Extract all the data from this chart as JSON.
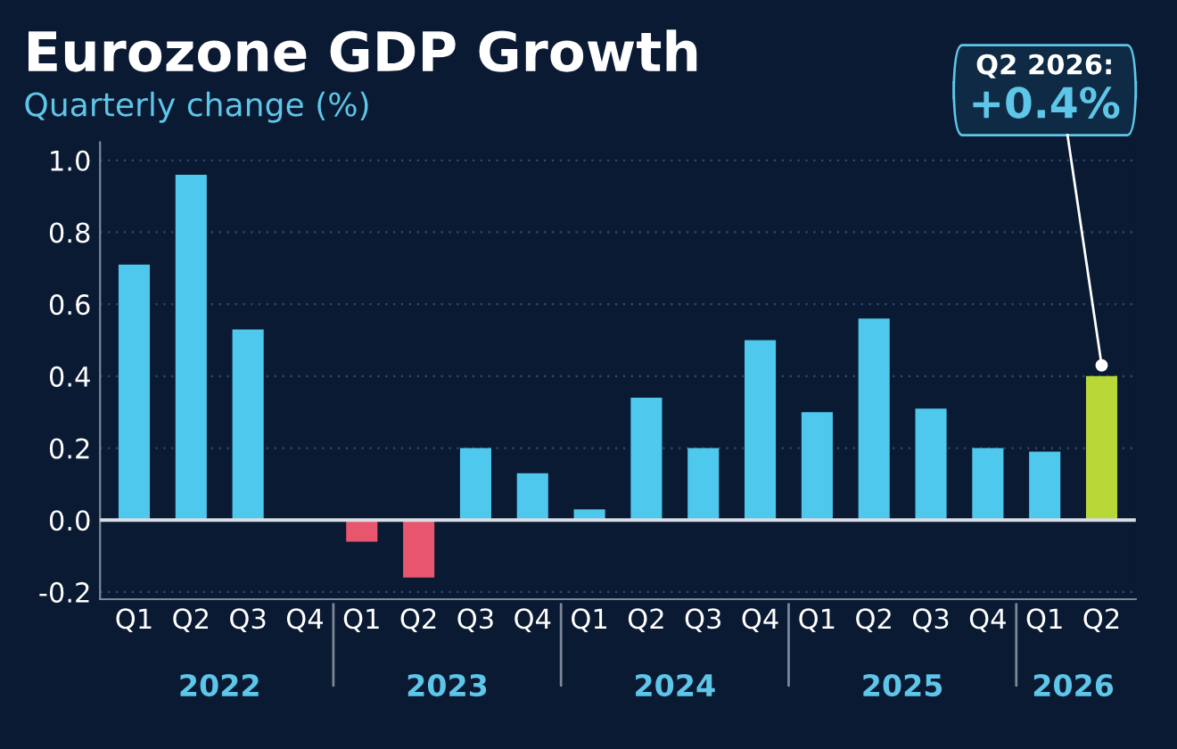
{
  "chart_data": {
    "type": "bar",
    "title": "Eurozone GDP Growth",
    "subtitle": "Quarterly change (%)",
    "categories": [
      "Q1",
      "Q2",
      "Q3",
      "Q4",
      "Q1",
      "Q2",
      "Q3",
      "Q4",
      "Q1",
      "Q2",
      "Q3",
      "Q4",
      "Q1",
      "Q2",
      "Q3",
      "Q4",
      "Q1",
      "Q2"
    ],
    "values": [
      0.71,
      0.96,
      0.53,
      0.0,
      -0.06,
      -0.16,
      0.2,
      0.13,
      0.03,
      0.34,
      0.2,
      0.5,
      0.3,
      0.56,
      0.31,
      0.2,
      0.19,
      0.4
    ],
    "colors": [
      "#4ec8ec",
      "#4ec8ec",
      "#4ec8ec",
      "#4ec8ec",
      "#e8566e",
      "#e8566e",
      "#4ec8ec",
      "#4ec8ec",
      "#4ec8ec",
      "#4ec8ec",
      "#4ec8ec",
      "#4ec8ec",
      "#4ec8ec",
      "#4ec8ec",
      "#4ec8ec",
      "#4ec8ec",
      "#4ec8ec",
      "#b8d838"
    ],
    "ylim": [
      -0.22,
      1.05
    ],
    "yticks": [
      {
        "value": -0.2,
        "label": "-0.2"
      },
      "0.0",
      0.2,
      0.4,
      0.6,
      0.8,
      "1.0"
    ],
    "grid": "y",
    "ref_lines": [
      {
        "axis": "y",
        "value": 0,
        "color": "#d8dde6"
      }
    ],
    "annotations": [
      "2022",
      "2023",
      "2024",
      "2025",
      "2026",
      "Q2 2026:\n+0.4%"
    ]
  }
}
